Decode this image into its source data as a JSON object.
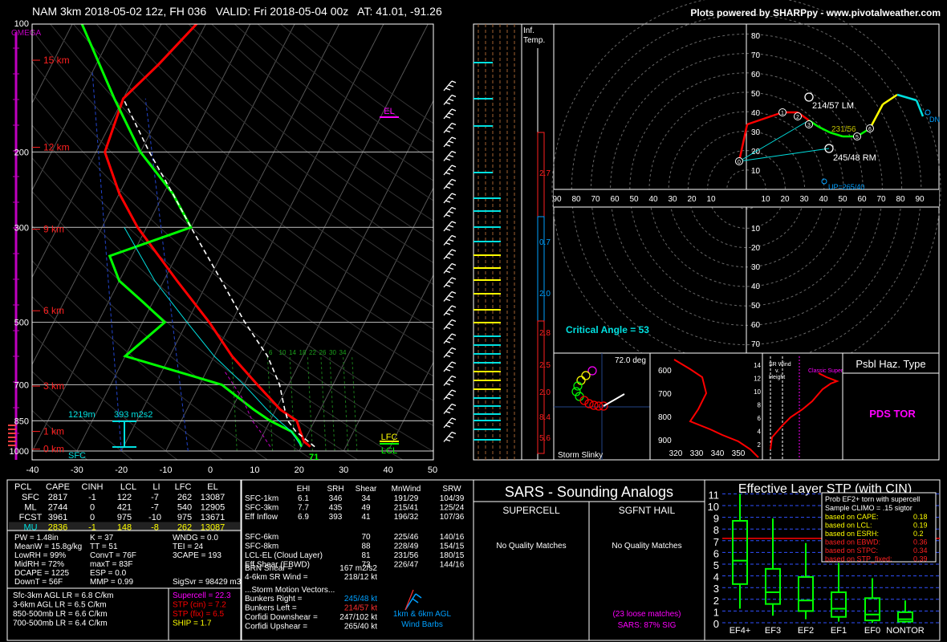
{
  "header": {
    "title": "NAM 3km 2018-05-02 12z, FH 036   VALID: Fri 2018-05-04 00z   AT: 41.01, -91.26",
    "credit": "Plots powered by SHARPpy - www.pivotalweather.com"
  },
  "skewt": {
    "omega_label": "OMEGA",
    "pressure_ticks": [
      "100",
      "200",
      "300",
      "500",
      "700",
      "850",
      "1000"
    ],
    "temp_ticks": [
      "-40",
      "-30",
      "-20",
      "-10",
      "0",
      "10",
      "20",
      "30",
      "40",
      "50"
    ],
    "height_labels": [
      "15 km",
      "12 km",
      "9 km",
      "6 km",
      "3 km",
      "1 km",
      "0 km"
    ],
    "sfc_label": "SFC",
    "sfc_temp": "71",
    "el_label": "EL",
    "lfc_label": "LFC",
    "lcl_label": "LCL",
    "inflow_depth": "1219m",
    "inflow_srh": "393 m2s2",
    "mixing_ratio_labels": [
      "6",
      "10",
      "14",
      "18",
      "22",
      "26",
      "30",
      "34"
    ]
  },
  "inferred_temp": {
    "title_line1": "Inf.",
    "title_line2": "Temp.",
    "values": [
      "2.7",
      "0.7",
      "2.0",
      "2.8",
      "2.5",
      "2.0",
      "8.4",
      "5.6"
    ]
  },
  "hodograph": {
    "axis_top": [
      "80",
      "70",
      "60",
      "50",
      "40",
      "30",
      "20",
      "10"
    ],
    "axis_bottom": [
      "10",
      "20",
      "30",
      "40",
      "50",
      "60",
      "70",
      "80"
    ],
    "axis_left": [
      "90",
      "80",
      "70",
      "60",
      "50",
      "40",
      "30",
      "20",
      "10"
    ],
    "axis_right": [
      "10",
      "20",
      "30",
      "40",
      "50",
      "60",
      "70",
      "80",
      "90"
    ],
    "lm_label": "214/57 LM",
    "rm_label": "245/48 RM",
    "mean_label": "231/56",
    "dn_label": "DN",
    "up_label": "UP=265/40",
    "critical_angle": "Critical Angle = 53",
    "point_labels": [
      "0",
      "1",
      "2",
      "3",
      "5",
      "6"
    ]
  },
  "storm_slinky": {
    "label": "Storm Slinky",
    "degree": "72.0 deg"
  },
  "theta_panel": {
    "pressures": [
      "600",
      "700",
      "800",
      "900"
    ],
    "xticks": [
      "320",
      "330",
      "340",
      "350"
    ]
  },
  "srwind_panel": {
    "title_line1": "SR Wind",
    "title_line2": "v.",
    "title_line3": "Height",
    "classic": "Classic Supercell",
    "yticks": [
      "14",
      "12",
      "10",
      "8",
      "6",
      "4",
      "2"
    ],
    "xticks": [
      "0",
      "20",
      "40",
      "60",
      "80"
    ]
  },
  "haz_type": {
    "title": "Psbl Haz. Type",
    "value": "PDS TOR"
  },
  "parcels": {
    "headers": [
      "PCL",
      "CAPE",
      "CINH",
      "LCL",
      "LI",
      "LFC",
      "EL"
    ],
    "rows": [
      [
        "SFC",
        "2817",
        "-1",
        "122",
        "-7",
        "262",
        "13087"
      ],
      [
        "ML",
        "2744",
        "0",
        "421",
        "-7",
        "540",
        "12905"
      ],
      [
        "FCST",
        "3961",
        "0",
        "975",
        "-10",
        "975",
        "13671"
      ],
      [
        "MU",
        "2836",
        "-1",
        "148",
        "-8",
        "262",
        "13087"
      ]
    ],
    "indices_left": [
      "PW = 1.48in",
      "MeanW = 15.8g/kg",
      "LowRH = 99%",
      "MidRH = 72%",
      "DCAPE = 1225",
      "DownT = 56F"
    ],
    "indices_mid": [
      "K = 37",
      "TT = 51",
      "ConvT = 76F",
      "maxT = 83F",
      "ESP = 0.0",
      "MMP = 0.99"
    ],
    "indices_right": [
      "WNDG = 0.0",
      "TEI = 24",
      "3CAPE = 193",
      "",
      "",
      ""
    ],
    "sigsvr": "SigSvr = 98429 m3/s3",
    "lapse": [
      "Sfc-3km AGL LR = 6.8 C/km",
      "3-6km AGL LR = 6.5 C/km",
      "850-500mb LR = 6.6 C/km",
      "700-500mb LR = 6.4 C/km"
    ],
    "composite": [
      {
        "text": "Supercell = 22.3",
        "color": "#ff00ff"
      },
      {
        "text": "STP (cin) = 7.2",
        "color": "#ff0000"
      },
      {
        "text": "STP (fix) = 6.5",
        "color": "#ff0000"
      },
      {
        "text": "SHIP = 1.7",
        "color": "#ffff00"
      }
    ]
  },
  "kinematics": {
    "headers": [
      "EHI",
      "SRH",
      "Shear",
      "MnWind",
      "SRW"
    ],
    "rows": [
      [
        "SFC-1km",
        "6.1",
        "346",
        "34",
        "191/29",
        "104/39"
      ],
      [
        "SFC-3km",
        "7.7",
        "435",
        "49",
        "215/41",
        "125/24"
      ],
      [
        "Eff Inflow",
        "6.9",
        "393",
        "41",
        "196/32",
        "107/36"
      ],
      [
        "",
        "",
        "",
        "",
        "",
        ""
      ],
      [
        "SFC-6km",
        "",
        "",
        "70",
        "225/46",
        "140/16"
      ],
      [
        "SFC-8km",
        "",
        "",
        "88",
        "228/49",
        "154/15"
      ],
      [
        "LCL-EL (Cloud Layer)",
        "",
        "",
        "81",
        "231/56",
        "180/15"
      ],
      [
        "Eff Shear (EBWD)",
        "",
        "",
        "73",
        "226/47",
        "144/16"
      ]
    ],
    "brn": [
      "BRN Shear =",
      "167 m2/s2"
    ],
    "srwind46": [
      "4-6km SR Wind =",
      "218/12 kt"
    ],
    "vectors_title": "...Storm Motion Vectors...",
    "vectors": [
      {
        "label": "Bunkers Right =",
        "value": "245/48 kt",
        "color": "#00a0ff"
      },
      {
        "label": "Bunkers Left =",
        "value": "214/57 kt",
        "color": "#ff3030"
      },
      {
        "label": "Corfidi Downshear =",
        "value": "247/102 kt",
        "color": "#ffffff"
      },
      {
        "label": "Corfidi Upshear =",
        "value": "265/40 kt",
        "color": "#ffffff"
      }
    ],
    "barbs_label1": "1km & 6km AGL",
    "barbs_label2": "Wind Barbs"
  },
  "sars": {
    "title": "SARS - Sounding Analogs",
    "col1": "SUPERCELL",
    "col2": "SGFNT HAIL",
    "col1_result": "No Quality Matches",
    "col2_result": "No Quality Matches",
    "loose": "(23 loose matches)",
    "sig": "SARS: 87% SIG"
  },
  "stp": {
    "title": "Effective Layer STP (with CIN)",
    "legend_title1": "Prob EF2+ torn with supercell",
    "legend_title2": "Sample CLIMO = .15 sigtor",
    "legend": [
      {
        "label": "based on CAPE:",
        "value": "0.18",
        "color": "#ffff00"
      },
      {
        "label": "based on LCL:",
        "value": "0.19",
        "color": "#ffff00"
      },
      {
        "label": "based on ESRH:",
        "value": "0.2",
        "color": "#ffff00"
      },
      {
        "label": "based on EBWD:",
        "value": "0.36",
        "color": "#ff2020"
      },
      {
        "label": "based on STPC:",
        "value": "0.34",
        "color": "#ff2020"
      },
      {
        "label": "based on STP_fixed:",
        "value": "0.39",
        "color": "#ff2020"
      }
    ],
    "yticks": [
      "0",
      "1",
      "2",
      "3",
      "4",
      "5",
      "6",
      "7",
      "8",
      "9",
      "10",
      "11"
    ],
    "categories": [
      "EF4+",
      "EF3",
      "EF2",
      "EF1",
      "EF0",
      "NONTOR"
    ],
    "current_value": 7.2
  },
  "chart_data": [
    {
      "type": "line",
      "title": "Skew-T log-P",
      "xlabel": "Temperature (C)",
      "ylabel": "Pressure (mb)",
      "xlim": [
        -40,
        50
      ],
      "ylim": [
        1000,
        100
      ],
      "series": [
        {
          "name": "Temperature",
          "p": [
            977,
            950,
            900,
            850,
            800,
            700,
            600,
            500,
            400,
            300,
            250,
            200,
            150,
            125,
            100
          ],
          "t": [
            22,
            20,
            18,
            16,
            11,
            3,
            -6,
            -15,
            -27,
            -42,
            -50,
            -58,
            -60,
            -56,
            -52
          ]
        },
        {
          "name": "Dewpoint",
          "p": [
            977,
            950,
            900,
            850,
            800,
            700,
            600,
            500,
            450,
            400,
            350,
            300,
            250,
            200,
            150,
            100
          ],
          "t": [
            20,
            19,
            16,
            10,
            5,
            -5,
            -30,
            -25,
            -32,
            -40,
            -45,
            -30,
            -38,
            -50,
            -62,
            -78
          ]
        }
      ]
    },
    {
      "type": "box",
      "title": "Effective Layer STP (with CIN)",
      "categories": [
        "EF4+",
        "EF3",
        "EF2",
        "EF1",
        "EF0",
        "NONTOR"
      ],
      "boxes": [
        {
          "min": 1.2,
          "q1": 3.3,
          "median": 5.3,
          "q3": 8.7,
          "max": 11.0
        },
        {
          "min": 0.6,
          "q1": 1.6,
          "median": 2.6,
          "q3": 4.6,
          "max": 8.9
        },
        {
          "min": 0.3,
          "q1": 1.0,
          "median": 1.9,
          "q3": 3.9,
          "max": 6.8
        },
        {
          "min": 0.1,
          "q1": 0.5,
          "median": 1.2,
          "q3": 2.6,
          "max": 5.1
        },
        {
          "min": 0.0,
          "q1": 0.2,
          "median": 0.7,
          "q3": 2.1,
          "max": 3.8
        },
        {
          "min": 0.0,
          "q1": 0.1,
          "median": 0.3,
          "q3": 0.9,
          "max": 1.9
        }
      ]
    }
  ]
}
